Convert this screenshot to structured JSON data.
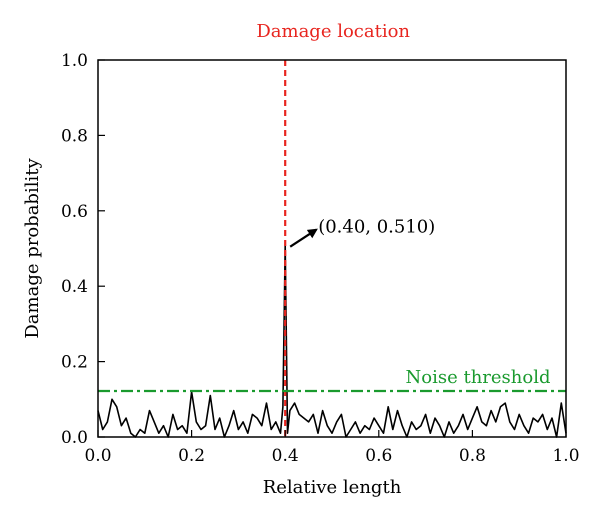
{
  "chart_data": {
    "type": "line",
    "xlabel": "Relative length",
    "ylabel": "Damage probability",
    "xlim": [
      0.0,
      1.0
    ],
    "ylim": [
      0.0,
      1.0
    ],
    "xticks": [
      0.0,
      0.2,
      0.4,
      0.6,
      0.8,
      1.0
    ],
    "yticks": [
      0.0,
      0.2,
      0.4,
      0.6,
      0.8,
      1.0
    ],
    "xtick_labels": [
      "0.0",
      "0.2",
      "0.4",
      "0.6",
      "0.8",
      "1.0"
    ],
    "ytick_labels": [
      "0.0",
      "0.2",
      "0.4",
      "0.6",
      "0.8",
      "1.0"
    ],
    "grid": false,
    "series": [
      {
        "color": "#000000",
        "x": [
          0.0,
          0.01,
          0.02,
          0.03,
          0.04,
          0.05,
          0.06,
          0.07,
          0.08,
          0.09,
          0.1,
          0.11,
          0.12,
          0.13,
          0.14,
          0.15,
          0.16,
          0.17,
          0.18,
          0.19,
          0.2,
          0.21,
          0.22,
          0.23,
          0.24,
          0.25,
          0.26,
          0.27,
          0.28,
          0.29,
          0.3,
          0.31,
          0.32,
          0.33,
          0.34,
          0.35,
          0.36,
          0.37,
          0.38,
          0.39,
          0.395,
          0.4,
          0.405,
          0.41,
          0.42,
          0.43,
          0.44,
          0.45,
          0.46,
          0.47,
          0.48,
          0.49,
          0.5,
          0.51,
          0.52,
          0.53,
          0.54,
          0.55,
          0.56,
          0.57,
          0.58,
          0.59,
          0.6,
          0.61,
          0.62,
          0.63,
          0.64,
          0.65,
          0.66,
          0.67,
          0.68,
          0.69,
          0.7,
          0.71,
          0.72,
          0.73,
          0.74,
          0.75,
          0.76,
          0.77,
          0.78,
          0.79,
          0.8,
          0.81,
          0.82,
          0.83,
          0.84,
          0.85,
          0.86,
          0.87,
          0.88,
          0.89,
          0.9,
          0.91,
          0.92,
          0.93,
          0.94,
          0.95,
          0.96,
          0.97,
          0.98,
          0.99,
          1.0
        ],
        "values": [
          0.07,
          0.02,
          0.04,
          0.1,
          0.08,
          0.03,
          0.05,
          0.01,
          0.0,
          0.02,
          0.01,
          0.07,
          0.04,
          0.01,
          0.03,
          0.0,
          0.06,
          0.02,
          0.03,
          0.01,
          0.12,
          0.04,
          0.02,
          0.03,
          0.11,
          0.02,
          0.05,
          0.0,
          0.03,
          0.07,
          0.02,
          0.04,
          0.01,
          0.06,
          0.05,
          0.03,
          0.09,
          0.02,
          0.04,
          0.01,
          0.08,
          0.51,
          0.01,
          0.07,
          0.09,
          0.06,
          0.05,
          0.04,
          0.06,
          0.01,
          0.07,
          0.03,
          0.01,
          0.04,
          0.06,
          0.0,
          0.02,
          0.04,
          0.01,
          0.03,
          0.02,
          0.05,
          0.03,
          0.01,
          0.08,
          0.02,
          0.07,
          0.03,
          0.0,
          0.04,
          0.02,
          0.03,
          0.06,
          0.01,
          0.05,
          0.03,
          0.0,
          0.04,
          0.01,
          0.03,
          0.06,
          0.02,
          0.05,
          0.08,
          0.04,
          0.03,
          0.07,
          0.04,
          0.08,
          0.09,
          0.04,
          0.02,
          0.06,
          0.03,
          0.01,
          0.05,
          0.04,
          0.06,
          0.02,
          0.05,
          0.0,
          0.09,
          0.01
        ]
      }
    ],
    "reference_lines": [
      {
        "orientation": "vertical",
        "value": 0.4,
        "color": "#e8251f",
        "style": "dashed",
        "label": "Damage location"
      },
      {
        "orientation": "horizontal",
        "value": 0.122,
        "color": "#1a9a2e",
        "style": "dash-dot",
        "label": "Noise threshold"
      }
    ],
    "annotations": [
      {
        "text": "(0.40, 0.510)",
        "x": 0.4,
        "y": 0.51
      }
    ]
  }
}
